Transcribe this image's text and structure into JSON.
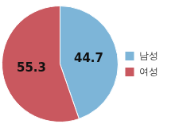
{
  "chart_data": {
    "type": "pie",
    "categories": [
      "남성",
      "여성"
    ],
    "values": [
      44.7,
      55.3
    ],
    "colors": [
      "#7db5d8",
      "#c9585f"
    ],
    "legend": "right",
    "data_labels": true
  }
}
